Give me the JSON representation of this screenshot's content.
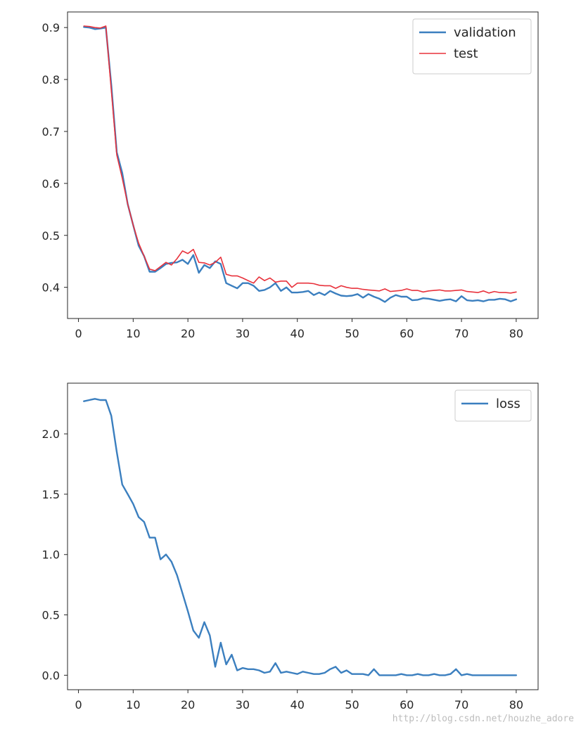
{
  "watermark": "http://blog.csdn.net/houzhe_adore",
  "chart_data": [
    {
      "type": "line",
      "title": "",
      "xlabel": "",
      "ylabel": "",
      "xlim": [
        -2,
        84
      ],
      "ylim": [
        0.34,
        0.93
      ],
      "xticks": [
        0,
        10,
        20,
        30,
        40,
        50,
        60,
        70,
        80
      ],
      "yticks": [
        0.4,
        0.5,
        0.6,
        0.7,
        0.8,
        0.9
      ],
      "ytick_labels": [
        "0.4",
        "0.5",
        "0.6",
        "0.7",
        "0.8",
        "0.9"
      ],
      "grid": false,
      "legend_position": "top-right",
      "x": [
        1,
        2,
        3,
        4,
        5,
        6,
        7,
        8,
        9,
        10,
        11,
        12,
        13,
        14,
        15,
        16,
        17,
        18,
        19,
        20,
        21,
        22,
        23,
        24,
        25,
        26,
        27,
        28,
        29,
        30,
        31,
        32,
        33,
        34,
        35,
        36,
        37,
        38,
        39,
        40,
        41,
        42,
        43,
        44,
        45,
        46,
        47,
        48,
        49,
        50,
        51,
        52,
        53,
        54,
        55,
        56,
        57,
        58,
        59,
        60,
        61,
        62,
        63,
        64,
        65,
        66,
        67,
        68,
        69,
        70,
        71,
        72,
        73,
        74,
        75,
        76,
        77,
        78,
        79,
        80
      ],
      "series": [
        {
          "name": "validation",
          "color": "#3b7fbf",
          "values": [
            0.901,
            0.9,
            0.897,
            0.898,
            0.9,
            0.79,
            0.66,
            0.62,
            0.56,
            0.52,
            0.48,
            0.46,
            0.43,
            0.43,
            0.437,
            0.445,
            0.447,
            0.448,
            0.453,
            0.445,
            0.462,
            0.428,
            0.443,
            0.437,
            0.45,
            0.445,
            0.408,
            0.403,
            0.398,
            0.408,
            0.408,
            0.403,
            0.393,
            0.395,
            0.4,
            0.408,
            0.393,
            0.4,
            0.39,
            0.39,
            0.391,
            0.393,
            0.385,
            0.39,
            0.385,
            0.393,
            0.388,
            0.384,
            0.383,
            0.384,
            0.387,
            0.38,
            0.387,
            0.382,
            0.378,
            0.372,
            0.38,
            0.385,
            0.382,
            0.382,
            0.375,
            0.376,
            0.379,
            0.378,
            0.376,
            0.374,
            0.376,
            0.377,
            0.373,
            0.383,
            0.375,
            0.374,
            0.375,
            0.373,
            0.376,
            0.376,
            0.378,
            0.377,
            0.373,
            0.377
          ]
        },
        {
          "name": "test",
          "color": "#e8323c",
          "values": [
            0.903,
            0.902,
            0.9,
            0.899,
            0.903,
            0.78,
            0.655,
            0.61,
            0.56,
            0.52,
            0.485,
            0.46,
            0.435,
            0.432,
            0.44,
            0.448,
            0.443,
            0.455,
            0.47,
            0.465,
            0.473,
            0.448,
            0.447,
            0.443,
            0.448,
            0.458,
            0.425,
            0.422,
            0.422,
            0.418,
            0.413,
            0.408,
            0.42,
            0.413,
            0.418,
            0.41,
            0.412,
            0.412,
            0.4,
            0.408,
            0.408,
            0.408,
            0.407,
            0.404,
            0.403,
            0.403,
            0.398,
            0.403,
            0.4,
            0.398,
            0.398,
            0.396,
            0.395,
            0.394,
            0.393,
            0.397,
            0.392,
            0.393,
            0.394,
            0.397,
            0.394,
            0.394,
            0.391,
            0.393,
            0.394,
            0.395,
            0.393,
            0.393,
            0.394,
            0.395,
            0.392,
            0.391,
            0.39,
            0.393,
            0.389,
            0.392,
            0.39,
            0.39,
            0.389,
            0.391
          ]
        }
      ]
    },
    {
      "type": "line",
      "title": "",
      "xlabel": "",
      "ylabel": "",
      "xlim": [
        -2,
        84
      ],
      "ylim": [
        -0.12,
        2.42
      ],
      "xticks": [
        0,
        10,
        20,
        30,
        40,
        50,
        60,
        70,
        80
      ],
      "yticks": [
        0.0,
        0.5,
        1.0,
        1.5,
        2.0
      ],
      "ytick_labels": [
        "0.0",
        "0.5",
        "1.0",
        "1.5",
        "2.0"
      ],
      "grid": false,
      "legend_position": "top-right",
      "x": [
        1,
        2,
        3,
        4,
        5,
        6,
        7,
        8,
        9,
        10,
        11,
        12,
        13,
        14,
        15,
        16,
        17,
        18,
        19,
        20,
        21,
        22,
        23,
        24,
        25,
        26,
        27,
        28,
        29,
        30,
        31,
        32,
        33,
        34,
        35,
        36,
        37,
        38,
        39,
        40,
        41,
        42,
        43,
        44,
        45,
        46,
        47,
        48,
        49,
        50,
        51,
        52,
        53,
        54,
        55,
        56,
        57,
        58,
        59,
        60,
        61,
        62,
        63,
        64,
        65,
        66,
        67,
        68,
        69,
        70,
        71,
        72,
        73,
        74,
        75,
        76,
        77,
        78,
        79,
        80
      ],
      "series": [
        {
          "name": "loss",
          "color": "#3b7fbf",
          "values": [
            2.27,
            2.28,
            2.29,
            2.28,
            2.28,
            2.15,
            1.85,
            1.58,
            1.5,
            1.42,
            1.31,
            1.27,
            1.14,
            1.14,
            0.96,
            1.0,
            0.94,
            0.83,
            0.68,
            0.53,
            0.37,
            0.31,
            0.44,
            0.33,
            0.07,
            0.27,
            0.09,
            0.17,
            0.04,
            0.06,
            0.05,
            0.05,
            0.04,
            0.02,
            0.03,
            0.1,
            0.02,
            0.03,
            0.02,
            0.01,
            0.03,
            0.02,
            0.01,
            0.01,
            0.02,
            0.05,
            0.07,
            0.02,
            0.04,
            0.01,
            0.01,
            0.01,
            0.0,
            0.05,
            0.0,
            0.0,
            0.0,
            0.0,
            0.01,
            0.0,
            0.0,
            0.01,
            0.0,
            0.0,
            0.01,
            0.0,
            0.0,
            0.01,
            0.05,
            0.0,
            0.01,
            0.0,
            0.0,
            0.0,
            0.0,
            0.0,
            0.0,
            0.0,
            0.0,
            0.0
          ]
        }
      ]
    }
  ]
}
